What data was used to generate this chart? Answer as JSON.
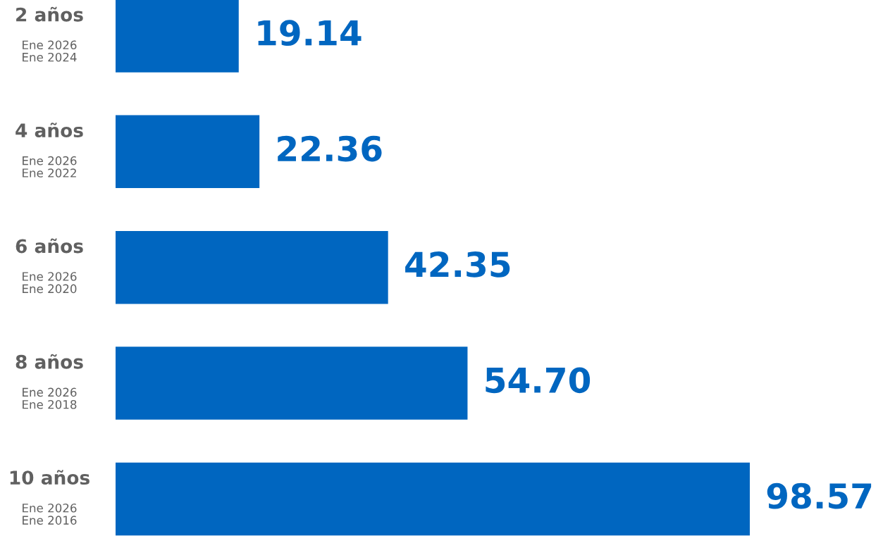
{
  "chart_data": {
    "type": "bar",
    "orientation": "horizontal",
    "categories": [
      "2 años\nEne 2026\nEne 2024",
      "4 años\nEne 2026\nEne 2022",
      "6 años\nEne 2026\nEne 2020",
      "8 años\nEne 2026\nEne 2018",
      "10 años\nEne 2026\nEne 2016"
    ],
    "values": [
      19.14,
      22.36,
      42.35,
      54.7,
      98.57
    ],
    "value_labels": [
      "19.14",
      "22.36",
      "42.35",
      "54.70",
      "98.57"
    ],
    "color": "#0066c0",
    "tick_labels": false
  }
}
